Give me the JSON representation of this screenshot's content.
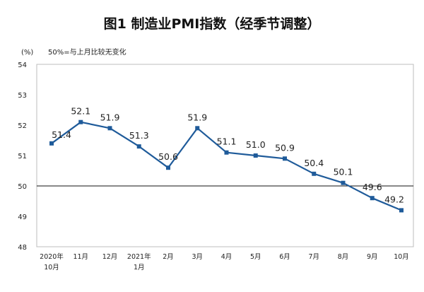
{
  "chart_data": {
    "type": "line",
    "title": "图1  制造业PMI指数（经季节调整）",
    "unit_label": "(%)",
    "note": "50%=与上月比较无变化",
    "categories": [
      [
        "2020年",
        "10月"
      ],
      [
        "11月"
      ],
      [
        "12月"
      ],
      [
        "2021年",
        "1月"
      ],
      [
        "2月"
      ],
      [
        "3月"
      ],
      [
        "4月"
      ],
      [
        "5月"
      ],
      [
        "6月"
      ],
      [
        "7月"
      ],
      [
        "8月"
      ],
      [
        "9月"
      ],
      [
        "10月"
      ]
    ],
    "values": [
      51.4,
      52.1,
      51.9,
      51.3,
      50.6,
      51.9,
      51.1,
      51.0,
      50.9,
      50.4,
      50.1,
      49.6,
      49.2
    ],
    "value_labels": [
      "51.4",
      "52.1",
      "51.9",
      "51.3",
      "50.6",
      "51.9",
      "51.1",
      "51.0",
      "50.9",
      "50.4",
      "50.1",
      "49.6",
      "49.2"
    ],
    "ylim": [
      48,
      54
    ],
    "yticks": [
      48,
      49,
      50,
      51,
      52,
      53,
      54
    ],
    "reference_line": 50,
    "grid": false,
    "line_color": "#1f5b9a"
  }
}
